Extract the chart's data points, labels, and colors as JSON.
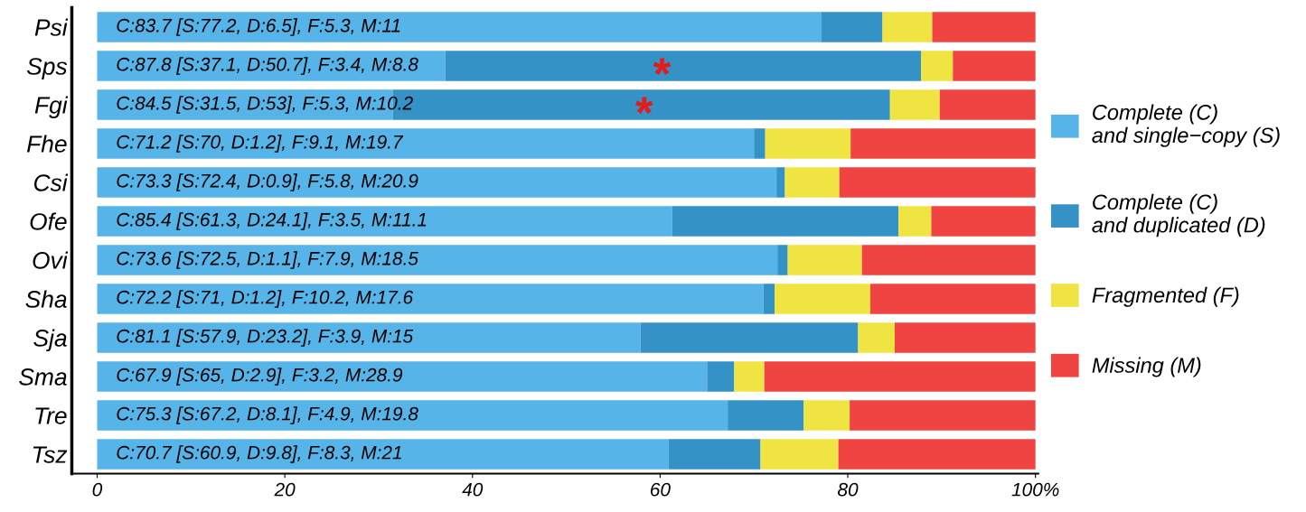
{
  "chart_data": {
    "type": "bar",
    "orientation": "horizontal",
    "stacked": true,
    "legend": "right",
    "grid": false,
    "categories": [
      "Psi",
      "Sps",
      "Fgi",
      "Fhe",
      "Csi",
      "Ofe",
      "Ovi",
      "Sha",
      "Sja",
      "Sma",
      "Tre",
      "Tsz"
    ],
    "xlim": [
      -2.7,
      100.3
    ],
    "xticks": [
      0,
      20,
      40,
      60,
      80,
      {
        "value": 100,
        "label": "100%"
      }
    ],
    "series": [
      {
        "name": "Complete (C)\nand single−copy (S)",
        "color": "#56b4e9",
        "values": [
          77.2,
          37.1,
          31.5,
          70,
          72.4,
          61.3,
          72.5,
          71,
          57.9,
          65,
          67.2,
          60.9
        ],
        "value_labels": [
          "C:83.7 [S:77.2, D:6.5], F:5.3, M:11",
          "C:87.8 [S:37.1, D:50.7], F:3.4, M:8.8",
          "C:84.5 [S:31.5, D:53], F:5.3, M:10.2",
          "C:71.2 [S:70, D:1.2], F:9.1, M:19.7",
          "C:73.3 [S:72.4, D:0.9], F:5.8, M:20.9",
          "C:85.4 [S:61.3, D:24.1], F:3.5, M:11.1",
          "C:73.6 [S:72.5, D:1.1], F:7.9, M:18.5",
          "C:72.2 [S:71, D:1.2], F:10.2, M:17.6",
          "C:81.1 [S:57.9, D:23.2], F:3.9, M:15",
          "C:67.9 [S:65, D:2.9], F:3.2, M:28.9",
          "C:75.3 [S:67.2, D:8.1], F:4.9, M:19.8",
          "C:70.7 [S:60.9, D:9.8], F:8.3, M:21"
        ]
      },
      {
        "name": "Complete (C)\nand duplicated (D)",
        "color": "#3492c7",
        "values": [
          6.5,
          50.7,
          53,
          1.2,
          0.9,
          24.1,
          1.1,
          1.2,
          23.2,
          2.9,
          8.1,
          9.8
        ]
      },
      {
        "name": "Fragmented (F)",
        "color": "#f0e442",
        "values": [
          5.3,
          3.4,
          5.3,
          9.1,
          5.8,
          3.5,
          7.9,
          10.2,
          3.9,
          3.2,
          4.9,
          8.3
        ]
      },
      {
        "name": "Missing (M)",
        "color": "#f04442",
        "values": [
          11,
          8.8,
          10.2,
          19.7,
          20.9,
          11.1,
          18.5,
          17.6,
          15,
          28.9,
          19.8,
          21
        ]
      }
    ],
    "annotations": [
      {
        "text": "*",
        "x": 60.2,
        "y": "Sps"
      },
      {
        "text": "*",
        "x": 58.3,
        "y": "Fgi"
      }
    ]
  }
}
